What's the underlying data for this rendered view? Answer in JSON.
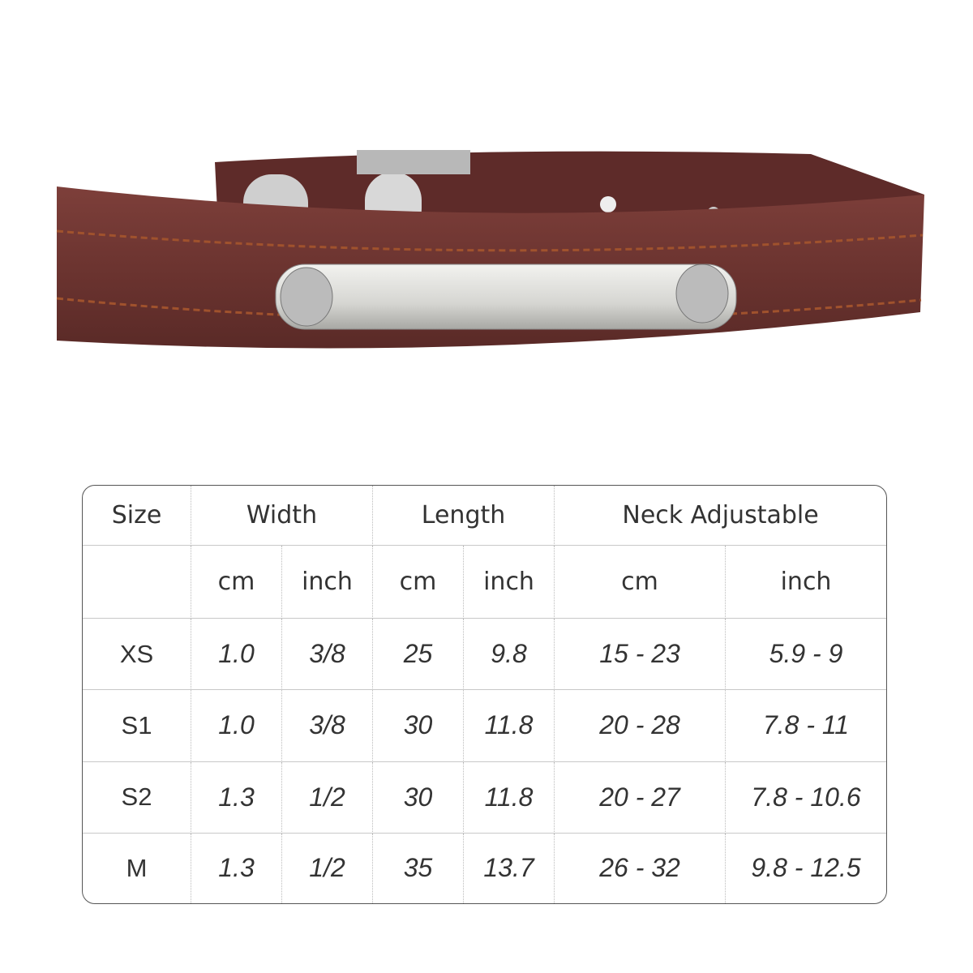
{
  "product_image": {
    "subject": "collar-with-nameplate",
    "colors": {
      "leather": "#6e3531",
      "stitching": "#a0522d",
      "metal": "#d9d9d6"
    }
  },
  "size_table": {
    "headers": {
      "size": "Size",
      "width": "Width",
      "length": "Length",
      "neck": "Neck Adjustable"
    },
    "units": [
      "cm",
      "inch",
      "cm",
      "inch",
      "cm",
      "inch"
    ],
    "rows": [
      {
        "size": "XS",
        "width_cm": "1.0",
        "width_inch": "3/8",
        "length_cm": "25",
        "length_inch": "9.8",
        "neck_cm": "15 - 23",
        "neck_inch": "5.9 - 9"
      },
      {
        "size": "S1",
        "width_cm": "1.0",
        "width_inch": "3/8",
        "length_cm": "30",
        "length_inch": "11.8",
        "neck_cm": "20 - 28",
        "neck_inch": "7.8 - 11"
      },
      {
        "size": "S2",
        "width_cm": "1.3",
        "width_inch": "1/2",
        "length_cm": "30",
        "length_inch": "11.8",
        "neck_cm": "20 - 27",
        "neck_inch": "7.8 - 10.6"
      },
      {
        "size": "M",
        "width_cm": "1.3",
        "width_inch": "1/2",
        "length_cm": "35",
        "length_inch": "13.7",
        "neck_cm": "26 - 32",
        "neck_inch": "9.8 - 12.5"
      }
    ]
  }
}
